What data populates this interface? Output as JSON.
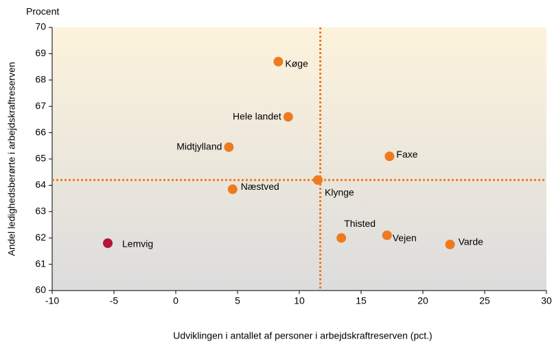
{
  "chart_data": {
    "type": "scatter",
    "y_unit_label": "Procent",
    "xlabel": "Udviklingen i antallet af personer i arbejdskraftreserven (pct.)",
    "ylabel": "Andel ledighedsberørte i arbejdskraftreserven",
    "labels": [
      "Køge",
      "Hele landet",
      "Midtjylland",
      "Faxe",
      "Klynge",
      "Næstved",
      "Thisted",
      "Vejen",
      "Varde",
      "Lemvig"
    ],
    "x": [
      8.3,
      9.1,
      4.3,
      17.3,
      11.5,
      4.6,
      13.4,
      17.1,
      22.2,
      -5.5
    ],
    "values": [
      68.7,
      66.6,
      65.45,
      65.1,
      64.2,
      63.85,
      62.0,
      62.1,
      61.75,
      61.8
    ],
    "colors": [
      "#ee7a1f",
      "#ee7a1f",
      "#ee7a1f",
      "#ee7a1f",
      "#ee7a1f",
      "#ee7a1f",
      "#ee7a1f",
      "#ee7a1f",
      "#ee7a1f",
      "#b5123c"
    ],
    "reference_lines": {
      "x": 11.7,
      "y": 64.2,
      "color": "#ee7a1f"
    },
    "xlim": [
      -10,
      30
    ],
    "xticks": [
      -10,
      -5,
      0,
      5,
      10,
      15,
      20,
      25,
      30
    ],
    "ylim": [
      60,
      70
    ],
    "yticks": [
      60,
      61,
      62,
      63,
      64,
      65,
      66,
      67,
      68,
      69,
      70
    ]
  }
}
